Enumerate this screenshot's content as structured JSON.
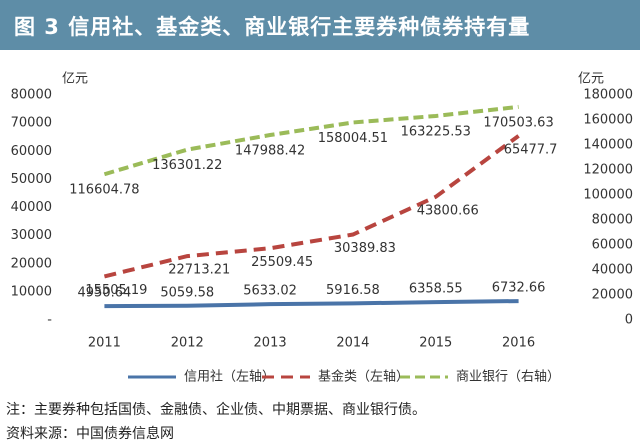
{
  "chart_data": {
    "type": "line",
    "title": "图 3 信用社、基金类、商业银行主要券种债券持有量",
    "ylabel": "亿元",
    "y2label": "亿元",
    "categories": [
      "2011",
      "2012",
      "2013",
      "2014",
      "2015",
      "2016"
    ],
    "ylim": [
      0,
      80000
    ],
    "yticks": [
      {
        "value": 0,
        "label": "-"
      },
      10000,
      20000,
      30000,
      40000,
      50000,
      60000,
      70000,
      80000
    ],
    "y2lim": [
      0,
      180000
    ],
    "y2ticks": [
      0,
      20000,
      40000,
      60000,
      80000,
      100000,
      120000,
      140000,
      160000,
      180000
    ],
    "grid": false,
    "legend": "bottom",
    "series": [
      {
        "name": "信用社（左轴）",
        "color": "#4a74a8",
        "dash": "none",
        "values": [
          4950.64,
          5059.58,
          5633.02,
          5916.58,
          6358.55,
          6732.66
        ]
      },
      {
        "name": "基金类（左轴）",
        "color": "#b8453f",
        "dash": "12 7",
        "values": [
          15505.19,
          22713.21,
          25509.45,
          30389.83,
          43800.66,
          65477.7
        ]
      },
      {
        "name": "商业银行（右轴）",
        "color": "#9bbb59",
        "dash": "10 5",
        "axis": "y2",
        "values": [
          116604.78,
          136301.22,
          147988.42,
          158004.51,
          163225.53,
          170503.63
        ]
      }
    ],
    "notes": [
      "注：主要券种包括国债、金融债、企业债、中期票据、商业银行债。",
      "资料来源：中国债券信息网"
    ]
  }
}
